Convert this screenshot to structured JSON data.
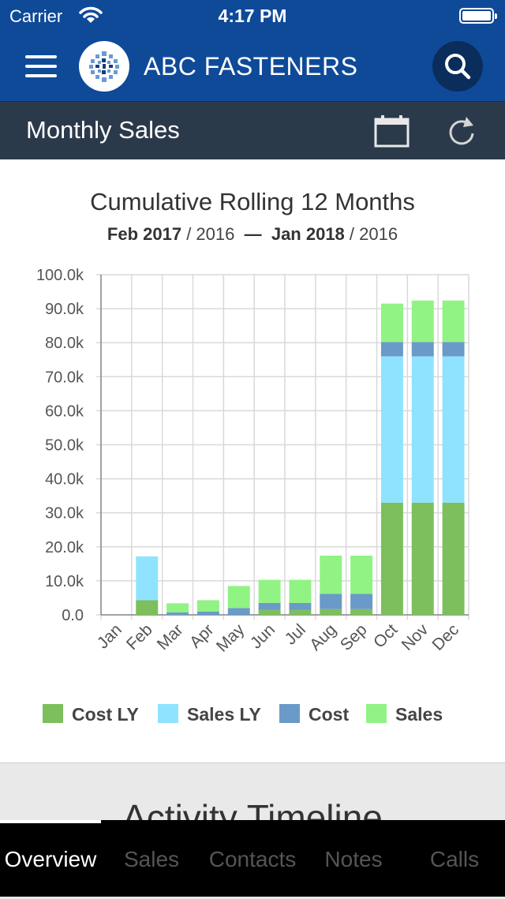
{
  "status_bar": {
    "carrier": "Carrier",
    "time": "4:17 PM"
  },
  "nav": {
    "brand": "ABC FASTENERS",
    "icons": [
      "menu-icon",
      "logo-icon",
      "search-icon"
    ]
  },
  "subheader": {
    "title": "Monthly Sales",
    "icons": [
      "calendar-icon",
      "refresh-icon"
    ]
  },
  "chart_header": {
    "title": "Cumulative Rolling 12 Months",
    "from_bold": "Feb 2017",
    "from_rest": " / 2016",
    "dash": "—",
    "to_bold": "Jan 2018",
    "to_rest": " / 2016"
  },
  "chart_data": {
    "type": "bar",
    "stacked": true,
    "title": "Cumulative Rolling 12 Months",
    "categories": [
      "Jan",
      "Feb",
      "Mar",
      "Apr",
      "May",
      "Jun",
      "Jul",
      "Aug",
      "Sep",
      "Oct",
      "Nov",
      "Dec"
    ],
    "ylim": [
      0,
      100000
    ],
    "ytick_labels": [
      "0.0",
      "10.0k",
      "20.0k",
      "30.0k",
      "40.0k",
      "50.0k",
      "60.0k",
      "70.0k",
      "80.0k",
      "90.0k",
      "100.0k"
    ],
    "grid": true,
    "legend_position": "bottom",
    "series": [
      {
        "name": "Cost LY",
        "color": "#7cbf5c",
        "values": [
          0,
          4300,
          0,
          0,
          0,
          1500,
          1500,
          1700,
          1700,
          33000,
          33000,
          33000
        ]
      },
      {
        "name": "Sales LY",
        "color": "#8fe3ff",
        "values": [
          0,
          12900,
          0,
          0,
          0,
          0,
          0,
          0,
          0,
          43000,
          43000,
          43000
        ]
      },
      {
        "name": "Cost",
        "color": "#6a9ac7",
        "values": [
          0,
          0,
          700,
          1000,
          2000,
          2000,
          2000,
          4500,
          4500,
          4200,
          4200,
          4200
        ]
      },
      {
        "name": "Sales",
        "color": "#90f383",
        "values": [
          0,
          0,
          2700,
          3300,
          6500,
          6800,
          6800,
          11200,
          11200,
          11300,
          12200,
          12200
        ]
      }
    ]
  },
  "activity": {
    "title": "Activity Timeline"
  },
  "tabs": [
    {
      "label": "Overview",
      "active": true
    },
    {
      "label": "Sales"
    },
    {
      "label": "Contacts"
    },
    {
      "label": "Notes"
    },
    {
      "label": "Calls"
    }
  ]
}
